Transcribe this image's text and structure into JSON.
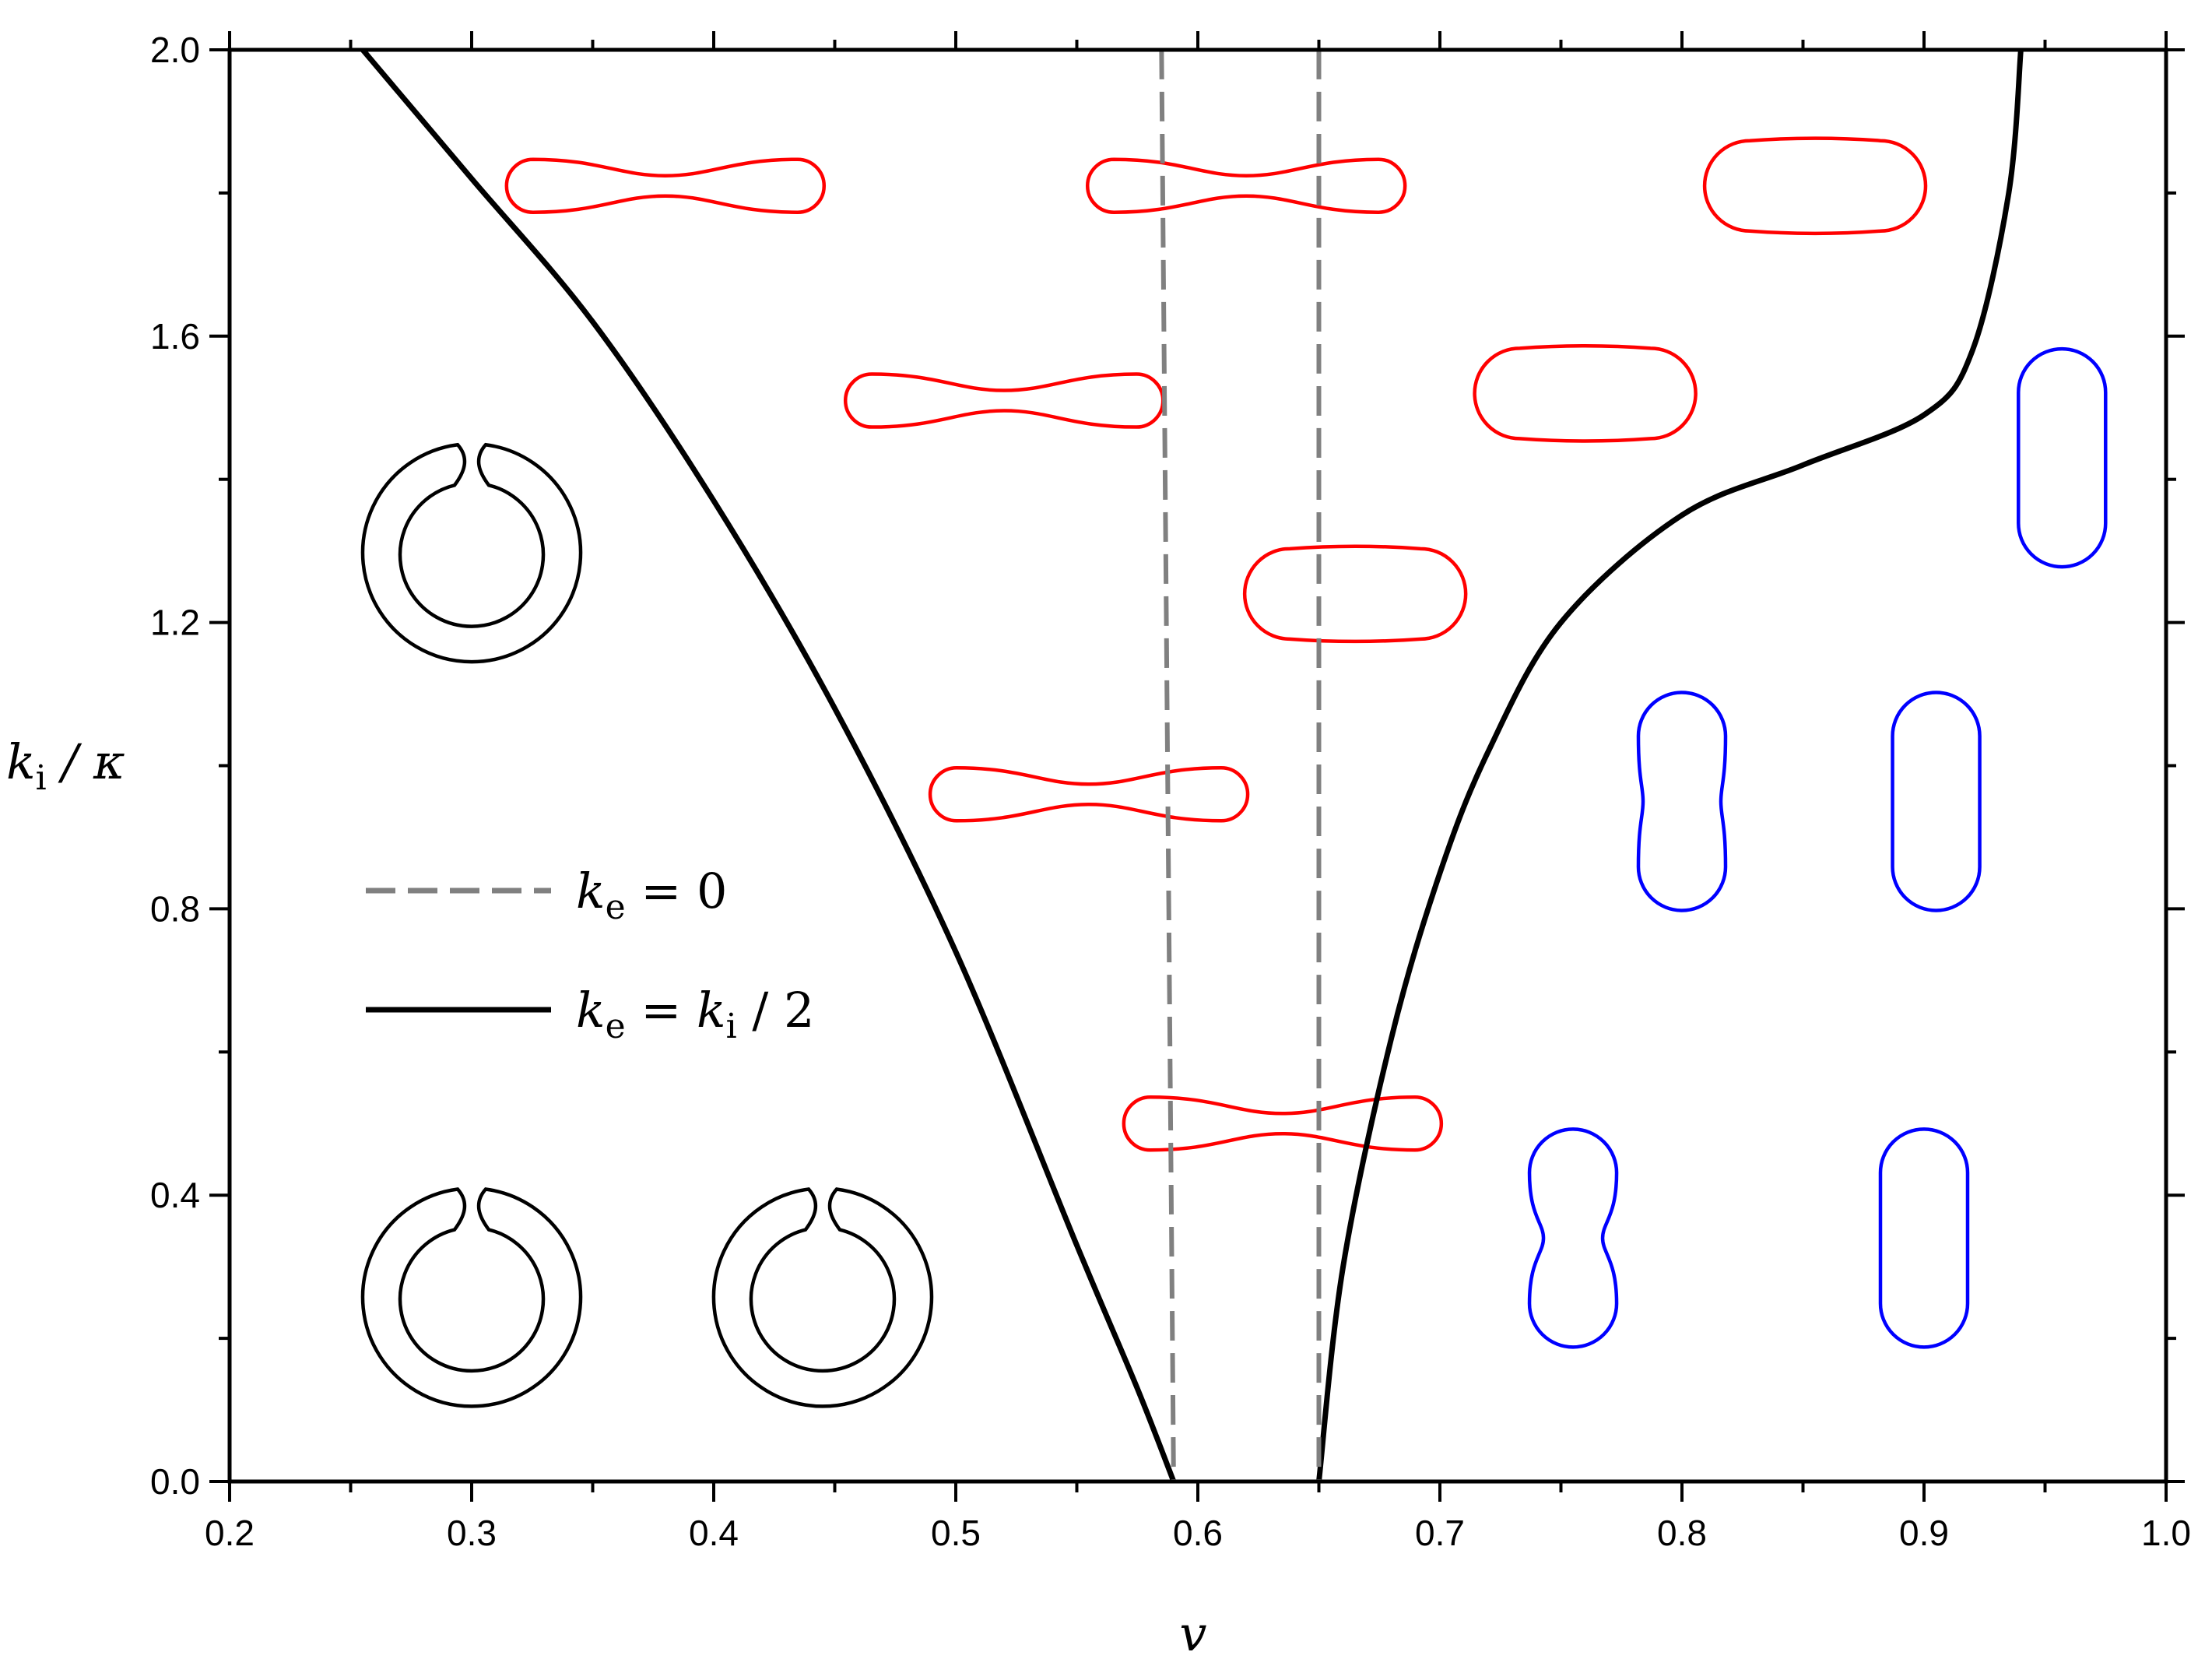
{
  "chart_data": {
    "type": "line",
    "title": "",
    "xlabel": "v",
    "ylabel": {
      "k": "k",
      "sub": "i",
      "rest": " / κ"
    },
    "xlim": [
      0.2,
      1.0
    ],
    "ylim": [
      0.0,
      2.0
    ],
    "x_ticks": [
      "0.2",
      "0.3",
      "0.4",
      "0.5",
      "0.6",
      "0.7",
      "0.8",
      "0.9",
      "1.0"
    ],
    "y_ticks": [
      "0.0",
      "0.4",
      "0.8",
      "1.2",
      "1.6",
      "2.0"
    ],
    "grid": false,
    "legend_position": "center-left",
    "legend": [
      {
        "style": "dashed",
        "color": "#808080",
        "k": "k",
        "sub": "e",
        "rest": " = 0"
      },
      {
        "style": "solid",
        "color": "#000000",
        "k": "k",
        "sub": "e",
        "rest": " = ",
        "k2": "k",
        "sub2": "i",
        "rest2": " / 2"
      }
    ],
    "series": [
      {
        "style": "solid",
        "color": "#000000",
        "x": [
          0.255,
          0.3,
          0.35,
          0.4,
          0.45,
          0.5,
          0.55,
          0.575,
          0.59
        ],
        "y": [
          2.0,
          1.82,
          1.62,
          1.37,
          1.08,
          0.74,
          0.33,
          0.13,
          0.0
        ]
      },
      {
        "style": "solid",
        "color": "#000000",
        "x": [
          0.65,
          0.66,
          0.68,
          0.7,
          0.72,
          0.75,
          0.8,
          0.85,
          0.9,
          0.92,
          0.935,
          0.94
        ],
        "y": [
          0.0,
          0.3,
          0.62,
          0.85,
          1.02,
          1.2,
          1.35,
          1.42,
          1.49,
          1.58,
          1.8,
          2.0
        ]
      },
      {
        "style": "dashed",
        "color": "#808080",
        "x": [
          0.585,
          0.59
        ],
        "y": [
          2.0,
          0.0
        ]
      },
      {
        "style": "dashed",
        "color": "#808080",
        "x": [
          0.65,
          0.65
        ],
        "y": [
          2.0,
          0.0
        ]
      }
    ],
    "annotations": {
      "stomatocytes": [
        {
          "v": 0.3,
          "k": 1.32,
          "color": "#000000"
        },
        {
          "v": 0.3,
          "k": 0.28,
          "color": "#000000"
        },
        {
          "v": 0.445,
          "k": 0.28,
          "color": "#000000"
        }
      ],
      "dumbbells": [
        {
          "v": 0.38,
          "k": 1.81,
          "color": "#ff0000"
        },
        {
          "v": 0.62,
          "k": 1.81,
          "color": "#ff0000"
        },
        {
          "v": 0.52,
          "k": 1.51,
          "color": "#ff0000"
        },
        {
          "v": 0.555,
          "k": 0.96,
          "color": "#ff0000"
        },
        {
          "v": 0.635,
          "k": 0.5,
          "color": "#ff0000"
        }
      ],
      "capsules_horizontal": [
        {
          "v": 0.855,
          "k": 1.81,
          "color": "#ff0000"
        },
        {
          "v": 0.76,
          "k": 1.52,
          "color": "#ff0000"
        },
        {
          "v": 0.665,
          "k": 1.24,
          "color": "#ff0000"
        }
      ],
      "prolates_vertical": [
        {
          "v": 0.957,
          "k": 1.43,
          "color": "#0000ff"
        },
        {
          "v": 0.8,
          "k": 0.95,
          "color": "#0000ff"
        },
        {
          "v": 0.905,
          "k": 0.95,
          "color": "#0000ff"
        },
        {
          "v": 0.755,
          "k": 0.34,
          "color": "#0000ff"
        },
        {
          "v": 0.9,
          "k": 0.34,
          "color": "#0000ff"
        }
      ]
    }
  }
}
